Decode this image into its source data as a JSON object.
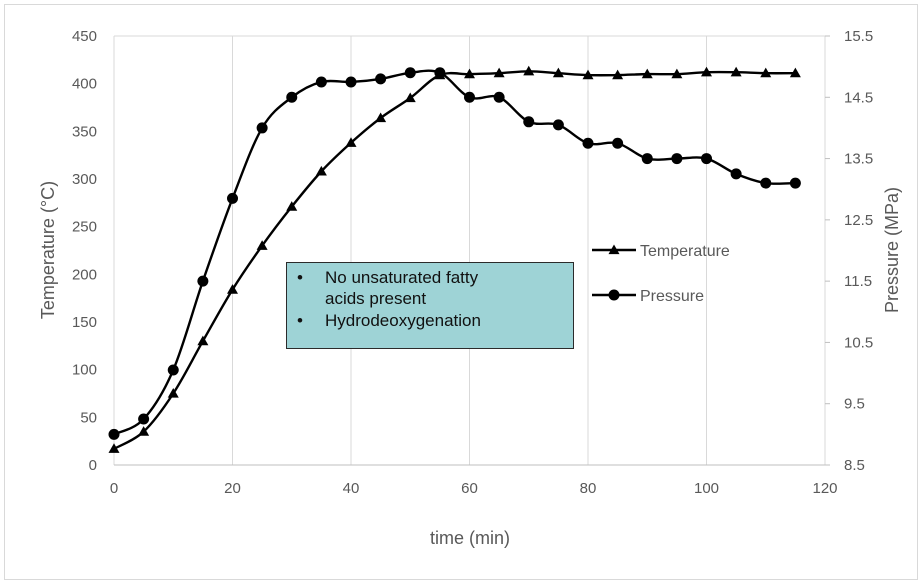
{
  "chart_data": {
    "type": "line",
    "title": "",
    "xlabel": "time (min)",
    "ylabel": "Temperature (°C)",
    "y2label": "Pressure (MPa)",
    "xlim": [
      0,
      120
    ],
    "ylim": [
      0,
      450
    ],
    "y2lim": [
      8.5,
      15.5
    ],
    "x_ticks": [
      "0",
      "20",
      "40",
      "60",
      "80",
      "100",
      "120"
    ],
    "y_ticks": [
      "0",
      "50",
      "100",
      "150",
      "200",
      "250",
      "300",
      "350",
      "400",
      "450"
    ],
    "y2_ticks": [
      "8.5",
      "9.5",
      "10.5",
      "11.5",
      "12.5",
      "13.5",
      "14.5",
      "15.5"
    ],
    "grid": "vertical",
    "legend_position": "right-middle",
    "x": [
      0,
      5,
      10,
      15,
      20,
      25,
      30,
      35,
      40,
      45,
      50,
      55,
      60,
      65,
      70,
      75,
      80,
      85,
      90,
      95,
      100,
      105,
      110,
      115
    ],
    "series": [
      {
        "name": "Temperature",
        "axis": "left",
        "marker": "triangle",
        "color": "#000000",
        "values": [
          17,
          35,
          75,
          130,
          184,
          230,
          271,
          308,
          338,
          364,
          385,
          409,
          410,
          411,
          413,
          411,
          409,
          409,
          410,
          410,
          412,
          412,
          411,
          411
        ]
      },
      {
        "name": "Pressure",
        "axis": "right",
        "marker": "circle",
        "color": "#000000",
        "values": [
          9.0,
          9.25,
          10.05,
          11.5,
          12.85,
          14.0,
          14.5,
          14.75,
          14.75,
          14.8,
          14.9,
          14.9,
          14.5,
          14.5,
          14.1,
          14.05,
          13.75,
          13.75,
          13.5,
          13.5,
          13.5,
          13.25,
          13.1,
          13.1
        ]
      }
    ],
    "annotation": {
      "items": [
        "No unsaturated fatty acids present",
        "Hydrodeoxygenation"
      ],
      "background": "#9ed3d6"
    }
  },
  "note": {
    "line1": "No unsaturated fatty",
    "line2": "acids present",
    "line3": "Hydrodeoxygenation"
  }
}
